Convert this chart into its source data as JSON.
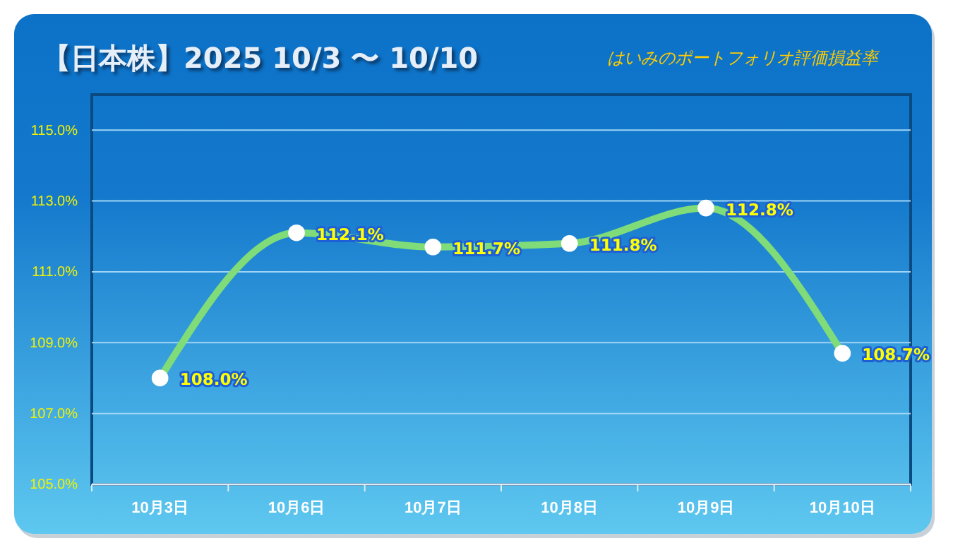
{
  "chart_data": {
    "type": "line",
    "title": "【日本株】2025 10/3 〜 10/10",
    "subtitle": "はいみのポートフォリオ評価損益率",
    "categories": [
      "10月3日",
      "10月6日",
      "10月7日",
      "10月8日",
      "10月9日",
      "10月10日"
    ],
    "series": [
      {
        "color": "#7fdc78",
        "values": [
          108.0,
          112.1,
          111.7,
          111.8,
          112.8,
          108.7
        ],
        "value_labels": [
          "108.0%",
          "112.1%",
          "111.7%",
          "111.8%",
          "112.8%",
          "108.7%"
        ]
      }
    ],
    "ylim": [
      105,
      116
    ],
    "yticks": [
      {
        "value": 105,
        "label": "105.0%"
      },
      {
        "value": 107,
        "label": "107.0%"
      },
      {
        "value": 109,
        "label": "109.0%"
      },
      {
        "value": 111,
        "label": "111.0%"
      },
      {
        "value": 113,
        "label": "113.0%"
      },
      {
        "value": 115,
        "label": "115.0%"
      }
    ],
    "grid": "y",
    "marker": "circle",
    "line_style": "solid"
  }
}
